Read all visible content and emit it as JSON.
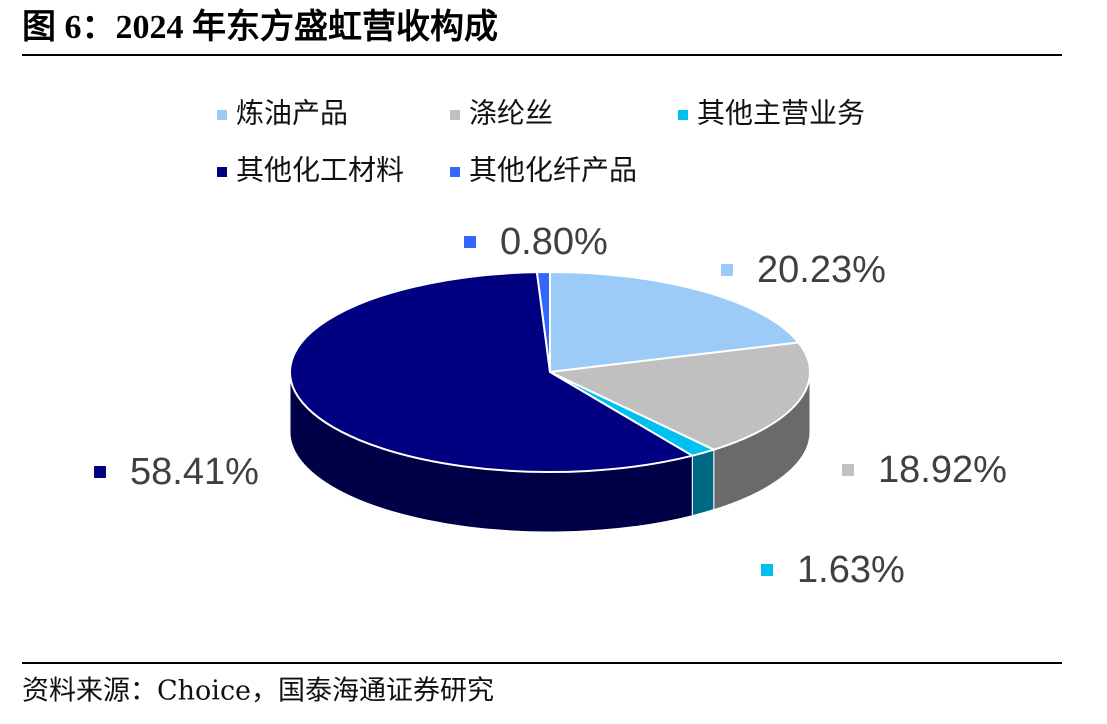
{
  "chart_data": {
    "type": "pie3d",
    "title": "图 6：2024 年东方盛虹营收构成",
    "source": "资料来源：Choice，国泰海通证券研究",
    "categories": [
      "炼油产品",
      "涤纶丝",
      "其他主营业务",
      "其他化工材料",
      "其他化纤产品"
    ],
    "values": [
      20.23,
      18.92,
      1.63,
      58.41,
      0.8
    ],
    "value_labels": [
      "20.23%",
      "18.92%",
      "1.63%",
      "58.41%",
      "0.80%"
    ],
    "colors": [
      "#9dcbf7",
      "#c0c0c0",
      "#00c0f0",
      "#000080",
      "#3366ff"
    ],
    "legend": "top"
  }
}
